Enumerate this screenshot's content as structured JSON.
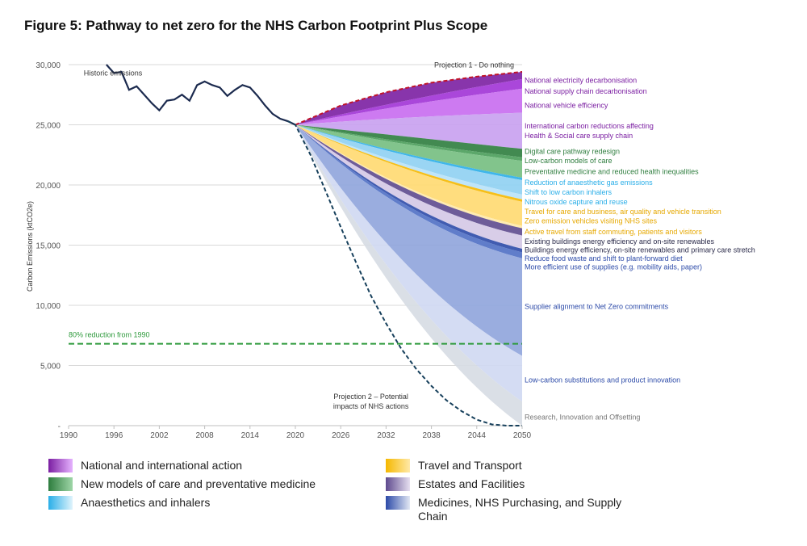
{
  "title": "Figure 5: Pathway to net zero for the NHS Carbon Footprint Plus Scope",
  "colors": {
    "historic": "#1b2a4e",
    "do_nothing": "#c0142a",
    "projection2": "#17405c",
    "reduction_line": "#2e9a3c",
    "tick": "#555555"
  },
  "chart_data": {
    "type": "area",
    "ylabel": "Carbon Emissions (ktCO2e)",
    "ylim": [
      0,
      30000
    ],
    "xlim": [
      1990,
      2050
    ],
    "yticks": [
      {
        "value": 0,
        "label": "-"
      },
      {
        "value": 5000,
        "label": "5,000"
      },
      {
        "value": 10000,
        "label": "10,000"
      },
      {
        "value": 15000,
        "label": "15,000"
      },
      {
        "value": 20000,
        "label": "20,000"
      },
      {
        "value": 25000,
        "label": "25,000"
      },
      {
        "value": 30000,
        "label": "30,000"
      }
    ],
    "xticks": [
      1990,
      1996,
      2002,
      2008,
      2014,
      2020,
      2026,
      2032,
      2038,
      2044,
      2050
    ],
    "historic": {
      "label": "Historic emissions",
      "x": [
        1995,
        1996,
        1997,
        1998,
        1999,
        2000,
        2001,
        2002,
        2003,
        2004,
        2005,
        2006,
        2007,
        2008,
        2009,
        2010,
        2011,
        2012,
        2013,
        2014,
        2015,
        2016,
        2017,
        2018,
        2019
      ],
      "y": [
        30000,
        29300,
        29400,
        27900,
        28200,
        27500,
        26800,
        26200,
        27000,
        27100,
        27500,
        27000,
        28300,
        28600,
        28300,
        28100,
        27400,
        27900,
        28300,
        28100,
        27400,
        26600,
        25900,
        25500,
        25300
      ]
    },
    "projection_start": {
      "x": 2020,
      "y": 25000
    },
    "do_nothing": {
      "label": "Projection 1 - Do nothing",
      "x": [
        2020,
        2026,
        2032,
        2038,
        2044,
        2050
      ],
      "y": [
        25000,
        26600,
        27700,
        28500,
        29000,
        29400
      ]
    },
    "projection2": {
      "label": "Projection 2 – Potential impacts of NHS actions",
      "x": [
        2019,
        2020,
        2022,
        2024,
        2026,
        2028,
        2030,
        2032,
        2034,
        2036,
        2038,
        2040,
        2042,
        2044,
        2046,
        2048,
        2050
      ],
      "y": [
        25300,
        25000,
        22500,
        19500,
        16500,
        13600,
        10800,
        8500,
        6400,
        4700,
        3300,
        2100,
        1200,
        500,
        100,
        0,
        0
      ]
    },
    "reduction_80": {
      "label": "80% reduction from 1990",
      "value": 6800
    },
    "wedges": [
      {
        "name": "National electricity decarbonisation",
        "group": "national",
        "color": "#7b1fa2",
        "end": 28800,
        "mid": 27200
      },
      {
        "name": "National supply chain decarbonisation",
        "group": "national",
        "color": "#a133d6",
        "end": 28000,
        "mid": 26800
      },
      {
        "name": "National vehicle efficiency",
        "group": "national",
        "color": "#c86cf0",
        "end": 26000,
        "mid": 25700
      },
      {
        "name": "International carbon reductions affecting Health & Social care supply chain",
        "group": "national",
        "color": "#c8a0f0",
        "end": 23000,
        "mid": 24000
      },
      {
        "name": "Digital care pathway redesign",
        "group": "care",
        "color": "#2e7d3e",
        "end": 22300,
        "mid": 23400
      },
      {
        "name": "Low-carbon models of care",
        "group": "care",
        "color": "#4a9d5a",
        "end": 22000,
        "mid": 23200
      },
      {
        "name": "Preventative medicine and reduced health inequalities",
        "group": "care",
        "color": "#74be80",
        "end": 20600,
        "mid": 22300
      },
      {
        "name": "Reduction of anaesthetic gas emissions",
        "group": "anaesthetics",
        "color": "#2aaee8",
        "end": 20400,
        "mid": 22100
      },
      {
        "name": "Shift to low carbon inhalers",
        "group": "anaesthetics",
        "color": "#8fd0f2",
        "end": 19200,
        "mid": 21200
      },
      {
        "name": "Nitrous oxide capture and reuse",
        "group": "anaesthetics",
        "color": "#b8e2f8",
        "end": 18800,
        "mid": 20900
      },
      {
        "name": "Travel for care and business, air quality and vehicle transition",
        "group": "travel",
        "color": "#f5b800",
        "end": 18600,
        "mid": 20700
      },
      {
        "name": "Zero emission vehicles visiting NHS sites",
        "group": "travel",
        "color": "#ffd970",
        "end": 16600,
        "mid": 18700
      },
      {
        "name": "Active travel from staff commuting, patients and visitors",
        "group": "travel",
        "color": "#ffe9a8",
        "end": 16400,
        "mid": 18500
      },
      {
        "name": "Existing buildings energy efficiency and on-site renewables",
        "group": "estates",
        "color": "#5e4a8e",
        "end": 15800,
        "mid": 17900
      },
      {
        "name": "Buildings energy efficiency, on-site renewables and primary care stretch",
        "group": "estates",
        "color": "#d4c8e6",
        "end": 14700,
        "mid": 17000
      },
      {
        "name": "Reduce food waste and shift to plant-forward diet",
        "group": "medicines",
        "color": "#2c4aa8",
        "end": 14400,
        "mid": 16700
      },
      {
        "name": "More efficient use of supplies (e.g. mobility aids, paper)",
        "group": "medicines",
        "color": "#4f6fc4",
        "end": 13900,
        "mid": 16300
      },
      {
        "name": "Supplier alignment to Net Zero commitments",
        "group": "medicines",
        "color": "#8fa4dc",
        "end": 5800,
        "mid": 11000
      },
      {
        "name": "Low-carbon substitutions and product innovation",
        "group": "medicines",
        "color": "#cfd8f2",
        "end": 2000,
        "mid": 8500
      },
      {
        "name": "Research, Innovation and Offsetting",
        "group": "medicines",
        "color": "#d6dbe3",
        "end": 0,
        "mid": 6800
      }
    ],
    "wedge_labels": [
      {
        "text": "National electricity decarbonisation",
        "y": 28700,
        "color": "#7b1fa2"
      },
      {
        "text": "National supply chain decarbonisation",
        "y": 27800,
        "color": "#7b1fa2"
      },
      {
        "text": "National vehicle efficiency",
        "y": 26600,
        "color": "#7b1fa2"
      },
      {
        "text": "International carbon reductions affecting",
        "y": 24900,
        "color": "#7b1fa2"
      },
      {
        "text": "Health & Social care supply chain",
        "y": 24100,
        "color": "#7b1fa2"
      },
      {
        "text": "Digital care pathway redesign",
        "y": 22800,
        "color": "#2e7d3e"
      },
      {
        "text": "Low-carbon models of care",
        "y": 22000,
        "color": "#2e7d3e"
      },
      {
        "text": "Preventative medicine and reduced health inequalities",
        "y": 21100,
        "color": "#2e7d3e"
      },
      {
        "text": "Reduction of anaesthetic gas emissions",
        "y": 20200,
        "color": "#2aaee8"
      },
      {
        "text": "Shift to low carbon inhalers",
        "y": 19400,
        "color": "#2aaee8"
      },
      {
        "text": "Nitrous oxide capture and reuse",
        "y": 18600,
        "color": "#2aaee8"
      },
      {
        "text": "Travel for care and business, air quality and vehicle transition",
        "y": 17800,
        "color": "#e6a800"
      },
      {
        "text": "Zero emission vehicles visiting NHS sites",
        "y": 17000,
        "color": "#e6a800"
      },
      {
        "text": "Active travel from staff commuting, patients and visitors",
        "y": 16100,
        "color": "#e6a800"
      },
      {
        "text": "Existing buildings energy efficiency and on-site renewables",
        "y": 15300,
        "color": "#2b2b4a"
      },
      {
        "text": "Buildings energy efficiency, on-site renewables and primary care stretch",
        "y": 14600,
        "color": "#2b2b4a"
      },
      {
        "text": "Reduce food waste and shift to plant-forward diet",
        "y": 13900,
        "color": "#2c4aa8"
      },
      {
        "text": "More efficient use of supplies (e.g. mobility aids, paper)",
        "y": 13200,
        "color": "#2c4aa8"
      },
      {
        "text": "Supplier alignment to Net Zero commitments",
        "y": 9900,
        "color": "#2c4aa8"
      },
      {
        "text": "Low-carbon substitutions and product innovation",
        "y": 3800,
        "color": "#2c4aa8"
      },
      {
        "text": "Research, Innovation and Offsetting",
        "y": 700,
        "color": "#777777"
      }
    ]
  },
  "legend": [
    {
      "label": "National and international action",
      "from": "#7b1fa2",
      "to": "#e6b3ff"
    },
    {
      "label": "Travel and Transport",
      "from": "#f5b800",
      "to": "#ffe9a8"
    },
    {
      "label": "New models of care and preventative medicine",
      "from": "#2e7d3e",
      "to": "#9fd6a8"
    },
    {
      "label": "Estates and Facilities",
      "from": "#5e4a8e",
      "to": "#e6dff0"
    },
    {
      "label": "Anaesthetics and inhalers",
      "from": "#2aaee8",
      "to": "#e0f4fc"
    },
    {
      "label": "Medicines, NHS Purchasing, and Supply Chain",
      "from": "#2c4aa8",
      "to": "#e2e8f4"
    }
  ]
}
